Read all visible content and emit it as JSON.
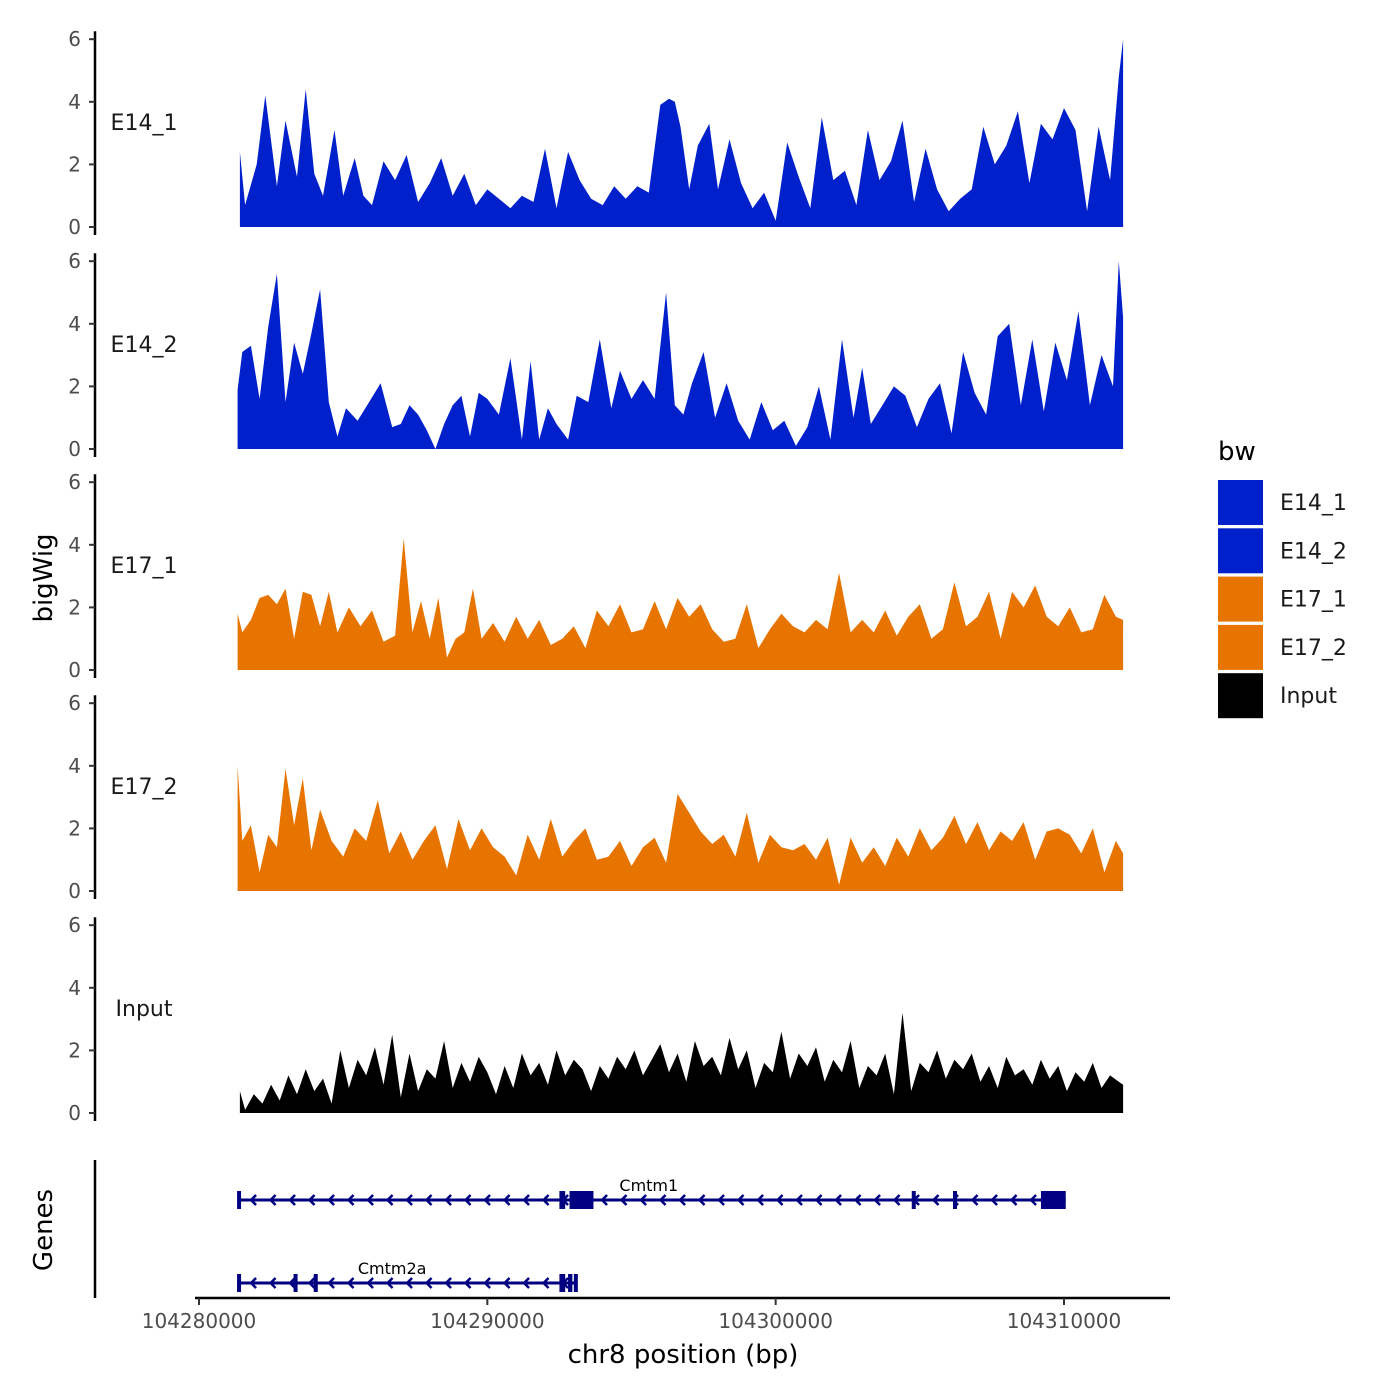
{
  "chart_data": {
    "type": "area",
    "title": "",
    "xlabel": "chr8 position (bp)",
    "ylabel": "bigWig",
    "genes_label": "Genes",
    "xlim": [
      104279900,
      104312400
    ],
    "ylim": [
      0,
      6
    ],
    "y_ticks": [
      "0",
      "2",
      "4",
      "6"
    ],
    "x_ticks": [
      {
        "value": 104280000,
        "label": "104280000"
      },
      {
        "value": 104290000,
        "label": "104290000"
      },
      {
        "value": 104300000,
        "label": "104300000"
      },
      {
        "value": 104310000,
        "label": "104310000"
      }
    ],
    "legend": {
      "title": "bw",
      "entries": [
        {
          "name": "E14_1",
          "color": "#0020CC"
        },
        {
          "name": "E14_2",
          "color": "#0020CC"
        },
        {
          "name": "E17_1",
          "color": "#E87400"
        },
        {
          "name": "E17_2",
          "color": "#E87400"
        },
        {
          "name": "Input",
          "color": "#000000"
        }
      ]
    },
    "series": [
      {
        "name": "E14_1",
        "color": "#0020CC",
        "x": [
          104281420,
          104281600,
          104282000,
          104282300,
          104282700,
          104283000,
          104283400,
          104283700,
          104284000,
          104284300,
          104284700,
          104285000,
          104285400,
          104285700,
          104286000,
          104286400,
          104286800,
          104287200,
          104287600,
          104288000,
          104288400,
          104288800,
          104289200,
          104289600,
          104290000,
          104290400,
          104290800,
          104291200,
          104291600,
          104292000,
          104292400,
          104292800,
          104293200,
          104293600,
          104294000,
          104294400,
          104294800,
          104295200,
          104295600,
          104296000,
          104296300,
          104296500,
          104296700,
          104297000,
          104297300,
          104297700,
          104298000,
          104298400,
          104298800,
          104299200,
          104299600,
          104300000,
          104300400,
          104300800,
          104301200,
          104301600,
          104302000,
          104302400,
          104302800,
          104303200,
          104303600,
          104304000,
          104304400,
          104304800,
          104305200,
          104305600,
          104306000,
          104306400,
          104306800,
          104307200,
          104307600,
          104308000,
          104308400,
          104308800,
          104309200,
          104309600,
          104310000,
          104310400,
          104310800,
          104311200,
          104311600,
          104311900,
          104312050
        ],
        "y": [
          2.4,
          0.7,
          2.0,
          4.2,
          1.3,
          3.4,
          1.6,
          4.4,
          1.7,
          1.0,
          3.1,
          1.0,
          2.2,
          1.0,
          0.7,
          2.1,
          1.5,
          2.3,
          0.8,
          1.4,
          2.2,
          1.0,
          1.7,
          0.7,
          1.2,
          0.9,
          0.6,
          1.0,
          0.8,
          2.5,
          0.6,
          2.4,
          1.5,
          0.9,
          0.7,
          1.3,
          0.9,
          1.3,
          1.1,
          3.9,
          4.1,
          4.0,
          3.2,
          1.2,
          2.6,
          3.3,
          1.2,
          2.8,
          1.4,
          0.6,
          1.1,
          0.2,
          2.7,
          1.6,
          0.6,
          3.5,
          1.5,
          1.8,
          0.7,
          3.1,
          1.5,
          2.1,
          3.4,
          0.8,
          2.5,
          1.2,
          0.5,
          0.9,
          1.2,
          3.2,
          2.0,
          2.6,
          3.7,
          1.4,
          3.3,
          2.8,
          3.8,
          3.1,
          0.5,
          3.2,
          1.5,
          4.8,
          6.0
        ]
      },
      {
        "name": "E14_2",
        "color": "#0020CC",
        "x": [
          104281340,
          104281500,
          104281800,
          104282100,
          104282400,
          104282700,
          104283000,
          104283300,
          104283600,
          104283900,
          104284200,
          104284500,
          104284800,
          104285100,
          104285500,
          104285900,
          104286300,
          104286700,
          104287000,
          104287300,
          104287600,
          104287900,
          104288200,
          104288500,
          104288800,
          104289100,
          104289400,
          104289700,
          104290000,
          104290400,
          104290800,
          104291200,
          104291500,
          104291800,
          104292100,
          104292400,
          104292800,
          104293100,
          104293500,
          104293900,
          104294300,
          104294600,
          104295000,
          104295400,
          104295800,
          104296200,
          104296500,
          104296800,
          104297100,
          104297500,
          104297900,
          104298300,
          104298700,
          104299100,
          104299500,
          104299900,
          104300300,
          104300700,
          104301100,
          104301500,
          104301900,
          104302300,
          104302700,
          104303000,
          104303300,
          104303700,
          104304100,
          104304500,
          104304900,
          104305300,
          104305700,
          104306100,
          104306500,
          104306900,
          104307300,
          104307700,
          104308100,
          104308500,
          104308900,
          104309300,
          104309700,
          104310100,
          104310500,
          104310900,
          104311300,
          104311700,
          104311900,
          104312050
        ],
        "y": [
          1.9,
          3.1,
          3.3,
          1.6,
          3.9,
          5.6,
          1.5,
          3.4,
          2.4,
          3.7,
          5.1,
          1.5,
          0.4,
          1.3,
          0.9,
          1.5,
          2.1,
          0.7,
          0.8,
          1.4,
          1.1,
          0.6,
          0.0,
          0.8,
          1.4,
          1.7,
          0.4,
          1.8,
          1.6,
          1.1,
          2.9,
          0.3,
          2.8,
          0.3,
          1.3,
          0.8,
          0.3,
          1.7,
          1.5,
          3.5,
          1.3,
          2.5,
          1.6,
          2.2,
          1.6,
          5.0,
          1.4,
          1.1,
          2.1,
          3.1,
          1.0,
          2.1,
          0.9,
          0.3,
          1.5,
          0.6,
          0.9,
          0.1,
          0.7,
          2.0,
          0.3,
          3.5,
          1.0,
          2.6,
          0.8,
          1.4,
          2.0,
          1.7,
          0.7,
          1.6,
          2.1,
          0.5,
          3.1,
          1.8,
          1.1,
          3.6,
          4.0,
          1.4,
          3.5,
          1.2,
          3.4,
          2.2,
          4.4,
          1.4,
          3.0,
          2.0,
          6.0,
          4.2
        ]
      },
      {
        "name": "E17_1",
        "color": "#E87400",
        "x": [
          104281340,
          104281500,
          104281800,
          104282100,
          104282400,
          104282700,
          104283000,
          104283300,
          104283600,
          104283900,
          104284200,
          104284500,
          104284800,
          104285200,
          104285600,
          104286000,
          104286400,
          104286800,
          104287100,
          104287400,
          104287700,
          104288000,
          104288300,
          104288600,
          104288900,
          104289200,
          104289500,
          104289800,
          104290200,
          104290600,
          104291000,
          104291400,
          104291800,
          104292200,
          104292600,
          104293000,
          104293400,
          104293800,
          104294200,
          104294600,
          104295000,
          104295400,
          104295800,
          104296200,
          104296600,
          104297000,
          104297400,
          104297800,
          104298200,
          104298600,
          104299000,
          104299400,
          104299800,
          104300200,
          104300600,
          104301000,
          104301400,
          104301800,
          104302200,
          104302600,
          104303000,
          104303400,
          104303800,
          104304200,
          104304600,
          104305000,
          104305400,
          104305800,
          104306200,
          104306600,
          104307000,
          104307400,
          104307800,
          104308200,
          104308600,
          104309000,
          104309400,
          104309800,
          104310200,
          104310600,
          104311000,
          104311400,
          104311800,
          104312050
        ],
        "y": [
          1.8,
          1.2,
          1.6,
          2.3,
          2.4,
          2.1,
          2.6,
          1.0,
          2.5,
          2.4,
          1.4,
          2.5,
          1.2,
          2.0,
          1.4,
          1.9,
          0.9,
          1.1,
          4.2,
          1.2,
          2.2,
          1.0,
          2.3,
          0.4,
          1.0,
          1.2,
          2.6,
          1.0,
          1.5,
          0.9,
          1.7,
          1.0,
          1.6,
          0.8,
          1.0,
          1.4,
          0.7,
          1.9,
          1.4,
          2.1,
          1.2,
          1.3,
          2.2,
          1.3,
          2.3,
          1.7,
          2.1,
          1.3,
          0.9,
          1.0,
          2.1,
          0.7,
          1.3,
          1.8,
          1.4,
          1.2,
          1.6,
          1.3,
          3.1,
          1.2,
          1.6,
          1.2,
          1.9,
          1.1,
          1.7,
          2.1,
          1.0,
          1.3,
          2.8,
          1.4,
          1.7,
          2.5,
          1.0,
          2.5,
          2.0,
          2.7,
          1.7,
          1.4,
          2.0,
          1.2,
          1.3,
          2.4,
          1.7,
          1.6
        ]
      },
      {
        "name": "E17_2",
        "color": "#E87400",
        "x": [
          104281340,
          104281500,
          104281800,
          104282100,
          104282400,
          104282700,
          104283000,
          104283300,
          104283600,
          104283900,
          104284200,
          104284600,
          104285000,
          104285400,
          104285800,
          104286200,
          104286600,
          104287000,
          104287400,
          104287800,
          104288200,
          104288600,
          104289000,
          104289400,
          104289800,
          104290200,
          104290600,
          104291000,
          104291400,
          104291800,
          104292200,
          104292600,
          104293000,
          104293400,
          104293800,
          104294200,
          104294600,
          104295000,
          104295400,
          104295800,
          104296200,
          104296600,
          104297000,
          104297400,
          104297800,
          104298200,
          104298600,
          104299000,
          104299400,
          104299800,
          104300200,
          104300600,
          104301000,
          104301400,
          104301800,
          104302200,
          104302600,
          104303000,
          104303400,
          104303800,
          104304200,
          104304600,
          104305000,
          104305400,
          104305800,
          104306200,
          104306600,
          104307000,
          104307400,
          104307800,
          104308200,
          104308600,
          104309000,
          104309400,
          104309800,
          104310200,
          104310600,
          104311000,
          104311400,
          104311800,
          104312050
        ],
        "y": [
          4.0,
          1.6,
          2.1,
          0.6,
          1.8,
          1.4,
          3.9,
          2.1,
          3.6,
          1.3,
          2.6,
          1.6,
          1.1,
          2.0,
          1.6,
          2.9,
          1.2,
          1.9,
          1.0,
          1.6,
          2.1,
          0.7,
          2.3,
          1.3,
          2.0,
          1.4,
          1.1,
          0.5,
          1.8,
          1.0,
          2.3,
          1.1,
          1.6,
          2.0,
          1.0,
          1.1,
          1.6,
          0.8,
          1.4,
          1.7,
          0.9,
          3.1,
          2.5,
          1.9,
          1.5,
          1.8,
          1.1,
          2.5,
          0.9,
          1.8,
          1.4,
          1.3,
          1.5,
          1.0,
          1.7,
          0.2,
          1.7,
          0.9,
          1.4,
          0.8,
          1.7,
          1.1,
          2.0,
          1.3,
          1.7,
          2.4,
          1.5,
          2.2,
          1.3,
          1.9,
          1.6,
          2.2,
          1.0,
          1.9,
          2.0,
          1.8,
          1.2,
          2.0,
          0.6,
          1.6,
          1.2
        ]
      },
      {
        "name": "Input",
        "color": "#000000",
        "x": [
          104281420,
          104281600,
          104281900,
          104282200,
          104282500,
          104282800,
          104283100,
          104283400,
          104283700,
          104284000,
          104284300,
          104284600,
          104284900,
          104285200,
          104285500,
          104285800,
          104286100,
          104286400,
          104286700,
          104287000,
          104287300,
          104287600,
          104287900,
          104288200,
          104288500,
          104288800,
          104289100,
          104289400,
          104289700,
          104290000,
          104290300,
          104290600,
          104290900,
          104291200,
          104291500,
          104291800,
          104292100,
          104292400,
          104292700,
          104293000,
          104293300,
          104293600,
          104293900,
          104294200,
          104294500,
          104294800,
          104295100,
          104295400,
          104295700,
          104296000,
          104296300,
          104296600,
          104296900,
          104297200,
          104297500,
          104297800,
          104298100,
          104298400,
          104298700,
          104299000,
          104299300,
          104299600,
          104299900,
          104300200,
          104300500,
          104300800,
          104301100,
          104301400,
          104301700,
          104302000,
          104302300,
          104302600,
          104302900,
          104303200,
          104303500,
          104303800,
          104304100,
          104304400,
          104304700,
          104305000,
          104305300,
          104305600,
          104305900,
          104306200,
          104306500,
          104306800,
          104307100,
          104307400,
          104307700,
          104308000,
          104308300,
          104308600,
          104308900,
          104309200,
          104309500,
          104309800,
          104310100,
          104310400,
          104310700,
          104311000,
          104311300,
          104311600,
          104311900,
          104312050
        ],
        "y": [
          0.7,
          0.1,
          0.6,
          0.3,
          0.9,
          0.4,
          1.2,
          0.6,
          1.4,
          0.7,
          1.1,
          0.3,
          2.0,
          0.8,
          1.7,
          1.2,
          2.1,
          0.9,
          2.5,
          0.5,
          1.9,
          0.7,
          1.4,
          1.1,
          2.3,
          0.8,
          1.6,
          1.0,
          1.8,
          1.3,
          0.6,
          1.5,
          0.8,
          1.9,
          1.2,
          1.6,
          0.9,
          2.0,
          1.2,
          1.7,
          1.4,
          0.7,
          1.5,
          1.1,
          1.8,
          1.4,
          2.0,
          1.2,
          1.7,
          2.2,
          1.3,
          1.9,
          1.0,
          2.3,
          1.5,
          1.8,
          1.2,
          2.4,
          1.4,
          2.0,
          0.8,
          1.6,
          1.3,
          2.6,
          1.1,
          1.9,
          1.5,
          2.1,
          1.0,
          1.7,
          1.3,
          2.3,
          0.8,
          1.5,
          1.2,
          1.9,
          0.6,
          3.2,
          0.7,
          1.6,
          1.3,
          2.0,
          1.1,
          1.7,
          1.4,
          1.9,
          1.0,
          1.5,
          0.8,
          1.8,
          1.2,
          1.4,
          0.9,
          1.7,
          1.1,
          1.5,
          0.7,
          1.3,
          1.0,
          1.6,
          0.8,
          1.2,
          1.0,
          0.9
        ]
      }
    ],
    "genes": [
      {
        "name": "Cmtm1",
        "strand": "-",
        "start": 104281320,
        "end": 104310060,
        "row": 0,
        "label_x": 104295600,
        "exons": [
          [
            104281320,
            104281360
          ],
          [
            104292500,
            104292700
          ],
          [
            104292850,
            104293680
          ],
          [
            104304720,
            104304780
          ],
          [
            104306150,
            104306210
          ],
          [
            104309200,
            104310060
          ]
        ]
      },
      {
        "name": "Cmtm2a",
        "strand": "-",
        "start": 104281320,
        "end": 104293100,
        "row": 1,
        "label_x": 104286700,
        "exons": [
          [
            104281320,
            104281360
          ],
          [
            104283280,
            104283330
          ],
          [
            104283980,
            104284040
          ],
          [
            104292500,
            104292700
          ],
          [
            104292800,
            104292950
          ],
          [
            104293000,
            104293100
          ]
        ]
      }
    ]
  }
}
